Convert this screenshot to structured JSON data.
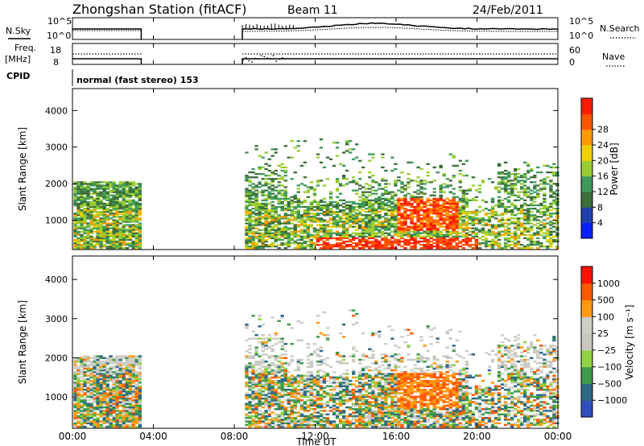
{
  "header": {
    "title": "Zhongshan Station (fitACF)",
    "beam": "Beam 11",
    "date": "24/Feb/2011"
  },
  "panels": {
    "nsky": {
      "label": "N.Sky",
      "left_ticks": [
        "10^5",
        "10^0"
      ],
      "right_ticks": [
        "10^5",
        "10^0"
      ],
      "right_label": "N.Search"
    },
    "freq": {
      "label_line1": "Freq.",
      "label_line2": "[MHz]",
      "left_ticks": [
        "18",
        "8"
      ],
      "right_ticks": [
        "60",
        "0"
      ],
      "right_label": "Nave"
    },
    "cpid": {
      "label": "CPID",
      "value": "normal (fast stereo) 153"
    }
  },
  "colors": {
    "power": [
      "#0b1fff",
      "#2040b0",
      "#3e6e3a",
      "#3f9a5a",
      "#9acd32",
      "#f0d000",
      "#ff9900",
      "#ff5500",
      "#ff1a00"
    ],
    "velocity": [
      "#ff1100",
      "#ff5a00",
      "#ff9a10",
      "#cfcfc7",
      "#c9c9c1",
      "#8fd13f",
      "#3f9a4a",
      "#2f6a85",
      "#2f4fc0"
    ]
  },
  "chart_data": [
    {
      "type": "heatmap",
      "name": "power",
      "xlabel": "",
      "ylabel": "Slant Range [km]",
      "xlim": [
        0,
        24
      ],
      "ylim": [
        200,
        4600
      ],
      "x_ticks": [
        "00:00",
        "04:00",
        "08:00",
        "12:00",
        "16:00",
        "20:00",
        "00:00"
      ],
      "y_ticks": [
        1000,
        2000,
        3000,
        4000
      ],
      "colorbar": {
        "label": "Power [dB]",
        "ticks": [
          4,
          8,
          12,
          16,
          20,
          24,
          28
        ]
      },
      "data_gap_hours": [
        3.4,
        8.4
      ]
    },
    {
      "type": "heatmap",
      "name": "velocity",
      "xlabel": "Time UT",
      "ylabel": "Slant Range [km]",
      "xlim": [
        0,
        24
      ],
      "ylim": [
        200,
        4600
      ],
      "x_ticks": [
        "00:00",
        "04:00",
        "08:00",
        "12:00",
        "16:00",
        "20:00",
        "00:00"
      ],
      "y_ticks": [
        1000,
        2000,
        3000,
        4000
      ],
      "colorbar": {
        "label": "Velocity [m s⁻¹]",
        "ticks": [
          "1000",
          "500",
          "100",
          "25",
          "−25",
          "−100",
          "−500",
          "−1000"
        ]
      },
      "data_gap_hours": [
        3.4,
        8.4
      ]
    }
  ]
}
